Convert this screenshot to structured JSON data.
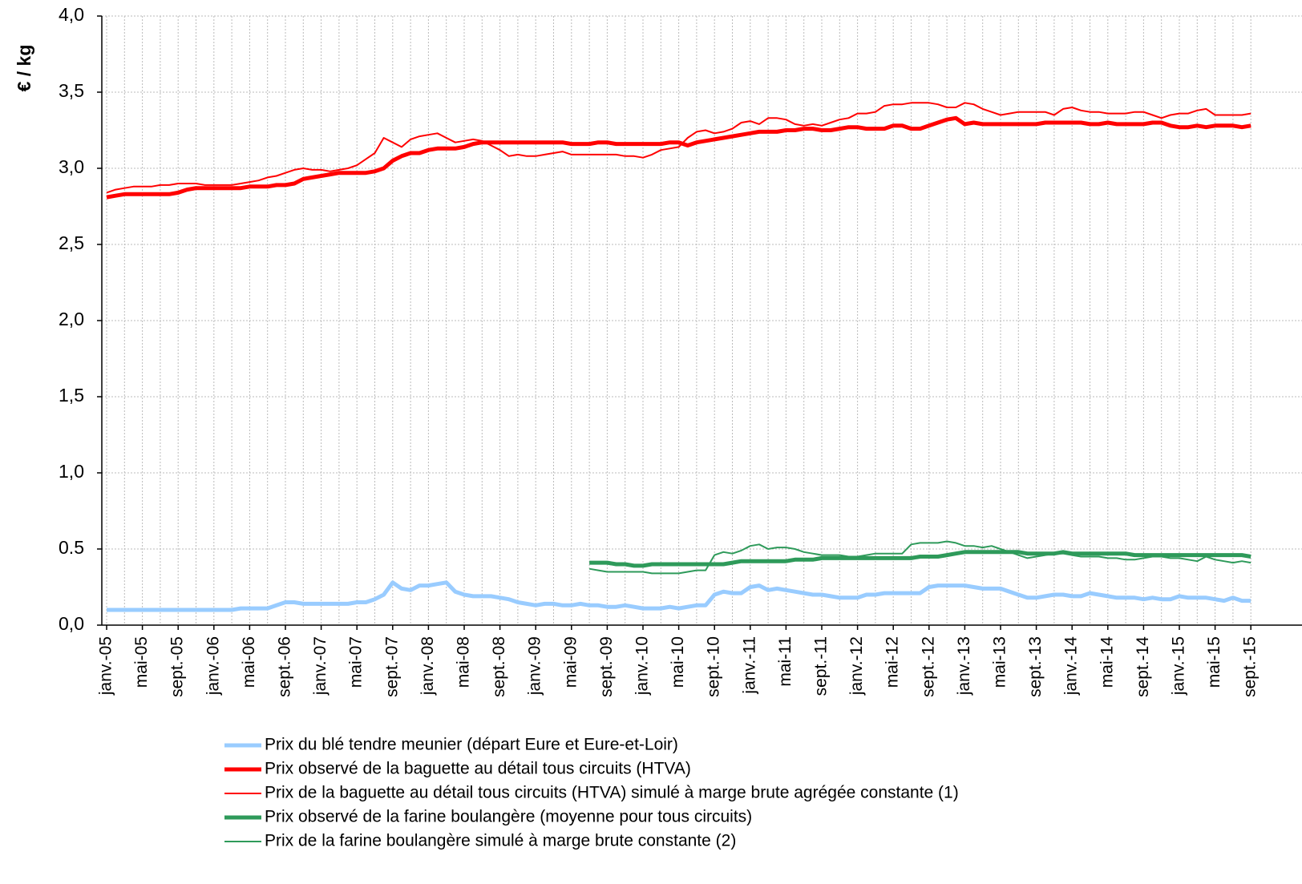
{
  "chart_data": {
    "type": "line",
    "y_label": "€ / kg",
    "categories": [
      "janv.-05",
      null,
      null,
      null,
      "mai-05",
      null,
      null,
      null,
      "sept.-05",
      null,
      null,
      null,
      "janv.-06",
      null,
      null,
      null,
      "mai-06",
      null,
      null,
      null,
      "sept.-06",
      null,
      null,
      null,
      "janv.-07",
      null,
      null,
      null,
      "mai-07",
      null,
      null,
      null,
      "sept.-07",
      null,
      null,
      null,
      "janv.-08",
      null,
      null,
      null,
      "mai-08",
      null,
      null,
      null,
      "sept.-08",
      null,
      null,
      null,
      "janv.-09",
      null,
      null,
      null,
      "mai-09",
      null,
      null,
      null,
      "sept.-09",
      null,
      null,
      null,
      "janv.-10",
      null,
      null,
      null,
      "mai-10",
      null,
      null,
      null,
      "sept.-10",
      null,
      null,
      null,
      "janv.-11",
      null,
      null,
      null,
      "mai-11",
      null,
      null,
      null,
      "sept.-11",
      null,
      null,
      null,
      "janv.-12",
      null,
      null,
      null,
      "mai-12",
      null,
      null,
      null,
      "sept.-12",
      null,
      null,
      null,
      "janv.-13",
      null,
      null,
      null,
      "mai-13",
      null,
      null,
      null,
      "sept.-13",
      null,
      null,
      null,
      "janv.-14",
      null,
      null,
      null,
      "mai-14",
      null,
      null,
      null,
      "sept.-14",
      null,
      null,
      null,
      "janv.-15",
      null,
      null,
      null,
      "mai-15",
      null,
      null,
      null,
      "sept.-15"
    ],
    "ylim": [
      0,
      4
    ],
    "yticks": [
      {
        "value": 0,
        "label": "0,0"
      },
      0.5,
      {
        "value": 1,
        "label": "1,0"
      },
      {
        "value": 1.5,
        "label": "1,5"
      },
      {
        "value": 2,
        "label": "2,0"
      },
      {
        "value": 2.5,
        "label": "2,5"
      },
      {
        "value": 3,
        "label": "3,0"
      },
      {
        "value": 3.5,
        "label": "3,5"
      },
      {
        "value": 4,
        "label": "4,0"
      }
    ],
    "grid": true,
    "series": [
      {
        "name": "Prix du blé tendre meunier (départ Eure et Eure-et-Loir)",
        "color": "#99ccff",
        "width": 5,
        "values": [
          0.1,
          0.1,
          0.1,
          0.1,
          0.1,
          0.1,
          0.1,
          0.1,
          0.1,
          0.1,
          0.1,
          0.1,
          0.1,
          0.1,
          0.1,
          0.11,
          0.11,
          0.11,
          0.11,
          0.13,
          0.15,
          0.15,
          0.14,
          0.14,
          0.14,
          0.14,
          0.14,
          0.14,
          0.15,
          0.15,
          0.17,
          0.2,
          0.28,
          0.24,
          0.23,
          0.26,
          0.26,
          0.27,
          0.28,
          0.22,
          0.2,
          0.19,
          0.19,
          0.19,
          0.18,
          0.17,
          0.15,
          0.14,
          0.13,
          0.14,
          0.14,
          0.13,
          0.13,
          0.14,
          0.13,
          0.13,
          0.12,
          0.12,
          0.13,
          0.12,
          0.11,
          0.11,
          0.11,
          0.12,
          0.11,
          0.12,
          0.13,
          0.13,
          0.2,
          0.22,
          0.21,
          0.21,
          0.25,
          0.26,
          0.23,
          0.24,
          0.23,
          0.22,
          0.21,
          0.2,
          0.2,
          0.19,
          0.18,
          0.18,
          0.18,
          0.2,
          0.2,
          0.21,
          0.21,
          0.21,
          0.21,
          0.21,
          0.25,
          0.26,
          0.26,
          0.26,
          0.26,
          0.25,
          0.24,
          0.24,
          0.24,
          0.22,
          0.2,
          0.18,
          0.18,
          0.19,
          0.2,
          0.2,
          0.19,
          0.19,
          0.21,
          0.2,
          0.19,
          0.18,
          0.18,
          0.18,
          0.17,
          0.18,
          0.17,
          0.17,
          0.19,
          0.18,
          0.18,
          0.18,
          0.17,
          0.16,
          0.18,
          0.16,
          0.16
        ]
      },
      {
        "name": "Prix observé de la baguette au détail tous circuits (HTVA)",
        "color": "#ff0000",
        "width": 5,
        "values": [
          2.81,
          2.82,
          2.83,
          2.83,
          2.83,
          2.83,
          2.83,
          2.83,
          2.84,
          2.86,
          2.87,
          2.87,
          2.87,
          2.87,
          2.87,
          2.87,
          2.88,
          2.88,
          2.88,
          2.89,
          2.89,
          2.9,
          2.93,
          2.94,
          2.95,
          2.96,
          2.97,
          2.97,
          2.97,
          2.97,
          2.98,
          3.0,
          3.05,
          3.08,
          3.1,
          3.1,
          3.12,
          3.13,
          3.13,
          3.13,
          3.14,
          3.16,
          3.17,
          3.17,
          3.17,
          3.17,
          3.17,
          3.17,
          3.17,
          3.17,
          3.17,
          3.17,
          3.16,
          3.16,
          3.16,
          3.17,
          3.17,
          3.16,
          3.16,
          3.16,
          3.16,
          3.16,
          3.16,
          3.17,
          3.17,
          3.15,
          3.17,
          3.18,
          3.19,
          3.2,
          3.21,
          3.22,
          3.23,
          3.24,
          3.24,
          3.24,
          3.25,
          3.25,
          3.26,
          3.26,
          3.25,
          3.25,
          3.26,
          3.27,
          3.27,
          3.26,
          3.26,
          3.26,
          3.28,
          3.28,
          3.26,
          3.26,
          3.28,
          3.3,
          3.32,
          3.33,
          3.29,
          3.3,
          3.29,
          3.29,
          3.29,
          3.29,
          3.29,
          3.29,
          3.29,
          3.3,
          3.3,
          3.3,
          3.3,
          3.3,
          3.29,
          3.29,
          3.3,
          3.29,
          3.29,
          3.29,
          3.29,
          3.3,
          3.3,
          3.28,
          3.27,
          3.27,
          3.28,
          3.27,
          3.28,
          3.28,
          3.28,
          3.27,
          3.28
        ]
      },
      {
        "name": "Prix de la baguette au détail tous circuits (HTVA) simulé à marge brute agrégée constante (1)",
        "color": "#ff0000",
        "width": 2,
        "values": [
          2.84,
          2.86,
          2.87,
          2.88,
          2.88,
          2.88,
          2.89,
          2.89,
          2.9,
          2.9,
          2.9,
          2.89,
          2.89,
          2.89,
          2.89,
          2.9,
          2.91,
          2.92,
          2.94,
          2.95,
          2.97,
          2.99,
          3.0,
          2.99,
          2.99,
          2.98,
          2.99,
          3.0,
          3.02,
          3.06,
          3.1,
          3.2,
          3.17,
          3.14,
          3.19,
          3.21,
          3.22,
          3.23,
          3.2,
          3.17,
          3.18,
          3.19,
          3.18,
          3.15,
          3.12,
          3.08,
          3.09,
          3.08,
          3.08,
          3.09,
          3.1,
          3.11,
          3.09,
          3.09,
          3.09,
          3.09,
          3.09,
          3.09,
          3.08,
          3.08,
          3.07,
          3.09,
          3.12,
          3.13,
          3.14,
          3.2,
          3.24,
          3.25,
          3.23,
          3.24,
          3.26,
          3.3,
          3.31,
          3.29,
          3.33,
          3.33,
          3.32,
          3.29,
          3.28,
          3.29,
          3.28,
          3.3,
          3.32,
          3.33,
          3.36,
          3.36,
          3.37,
          3.41,
          3.42,
          3.42,
          3.43,
          3.43,
          3.43,
          3.42,
          3.4,
          3.4,
          3.43,
          3.42,
          3.39,
          3.37,
          3.35,
          3.36,
          3.37,
          3.37,
          3.37,
          3.37,
          3.35,
          3.39,
          3.4,
          3.38,
          3.37,
          3.37,
          3.36,
          3.36,
          3.36,
          3.37,
          3.37,
          3.35,
          3.33,
          3.35,
          3.36,
          3.36,
          3.38,
          3.39,
          3.35,
          3.35,
          3.35,
          3.35,
          3.36
        ]
      },
      {
        "name": "Prix observé de la farine boulangère (moyenne pour tous circuits)",
        "color": "#2e9a5a",
        "width": 5,
        "values": [
          null,
          null,
          null,
          null,
          null,
          null,
          null,
          null,
          null,
          null,
          null,
          null,
          null,
          null,
          null,
          null,
          null,
          null,
          null,
          null,
          null,
          null,
          null,
          null,
          null,
          null,
          null,
          null,
          null,
          null,
          null,
          null,
          null,
          null,
          null,
          null,
          null,
          null,
          null,
          null,
          null,
          null,
          null,
          null,
          null,
          null,
          null,
          null,
          null,
          null,
          null,
          null,
          null,
          null,
          0.41,
          0.41,
          0.41,
          0.4,
          0.4,
          0.39,
          0.39,
          0.4,
          0.4,
          0.4,
          0.4,
          0.4,
          0.4,
          0.4,
          0.4,
          0.4,
          0.41,
          0.42,
          0.42,
          0.42,
          0.42,
          0.42,
          0.42,
          0.43,
          0.43,
          0.43,
          0.44,
          0.44,
          0.44,
          0.44,
          0.44,
          0.44,
          0.44,
          0.44,
          0.44,
          0.44,
          0.44,
          0.45,
          0.45,
          0.45,
          0.46,
          0.47,
          0.48,
          0.48,
          0.48,
          0.48,
          0.48,
          0.48,
          0.48,
          0.47,
          0.47,
          0.47,
          0.47,
          0.48,
          0.47,
          0.47,
          0.47,
          0.47,
          0.47,
          0.47,
          0.47,
          0.46,
          0.46,
          0.46,
          0.46,
          0.46,
          0.46,
          0.46,
          0.46,
          0.46,
          0.46,
          0.46,
          0.46,
          0.46,
          0.45
        ]
      },
      {
        "name": "Prix de la farine boulangère simulé à marge brute constante (2)",
        "color": "#2e9a5a",
        "width": 2,
        "values": [
          null,
          null,
          null,
          null,
          null,
          null,
          null,
          null,
          null,
          null,
          null,
          null,
          null,
          null,
          null,
          null,
          null,
          null,
          null,
          null,
          null,
          null,
          null,
          null,
          null,
          null,
          null,
          null,
          null,
          null,
          null,
          null,
          null,
          null,
          null,
          null,
          null,
          null,
          null,
          null,
          null,
          null,
          null,
          null,
          null,
          null,
          null,
          null,
          null,
          null,
          null,
          null,
          null,
          null,
          0.37,
          0.36,
          0.35,
          0.35,
          0.35,
          0.35,
          0.35,
          0.34,
          0.34,
          0.34,
          0.34,
          0.35,
          0.36,
          0.36,
          0.46,
          0.48,
          0.47,
          0.49,
          0.52,
          0.53,
          0.5,
          0.51,
          0.51,
          0.5,
          0.48,
          0.47,
          0.46,
          0.46,
          0.46,
          0.45,
          0.45,
          0.46,
          0.47,
          0.47,
          0.47,
          0.47,
          0.53,
          0.54,
          0.54,
          0.54,
          0.55,
          0.54,
          0.52,
          0.52,
          0.51,
          0.52,
          0.5,
          0.48,
          0.46,
          0.44,
          0.45,
          0.46,
          0.47,
          0.47,
          0.46,
          0.45,
          0.45,
          0.45,
          0.44,
          0.44,
          0.43,
          0.43,
          0.44,
          0.45,
          0.45,
          0.44,
          0.44,
          0.43,
          0.42,
          0.45,
          0.43,
          0.42,
          0.41,
          0.42,
          0.41
        ]
      }
    ]
  }
}
